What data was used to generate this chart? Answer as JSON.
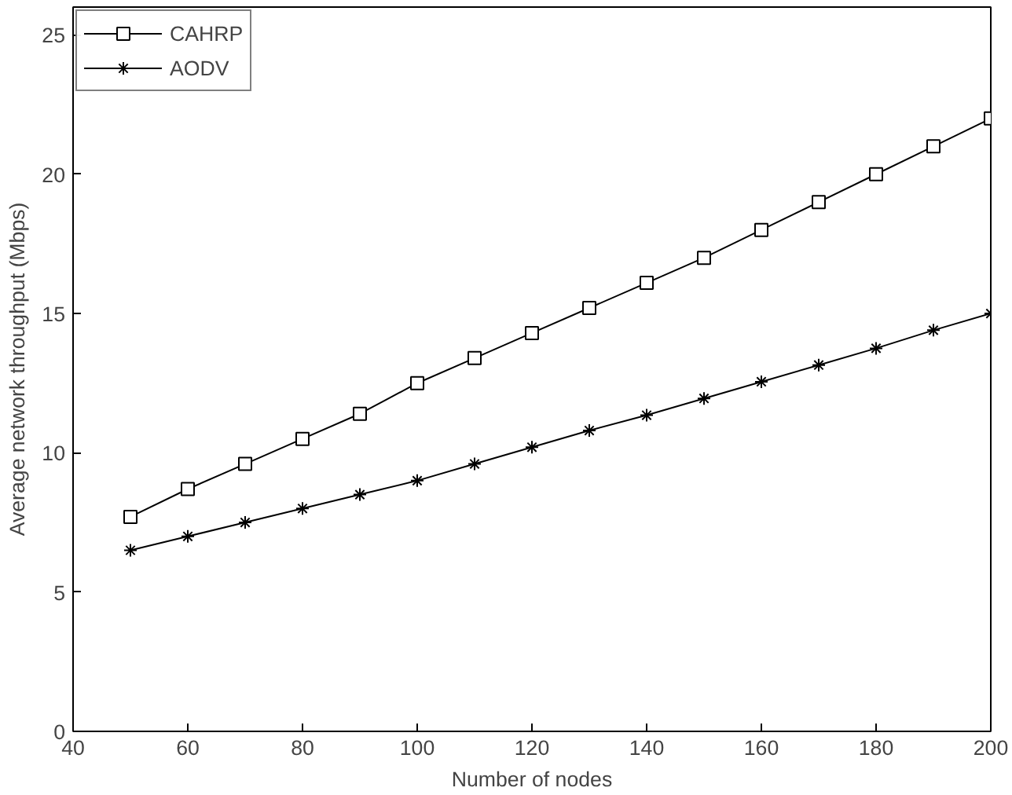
{
  "chart_data": {
    "type": "line",
    "xlabel": "Number of nodes",
    "ylabel": "Average network throughput (Mbps)",
    "x": [
      50,
      60,
      70,
      80,
      90,
      100,
      110,
      120,
      130,
      140,
      150,
      160,
      170,
      180,
      190,
      200
    ],
    "series": [
      {
        "name": "CAHRP",
        "color": "#000000",
        "marker": "square",
        "values": [
          7.7,
          8.7,
          9.6,
          10.5,
          11.4,
          12.5,
          13.4,
          14.3,
          15.2,
          16.1,
          17.0,
          18.0,
          19.0,
          20.0,
          21.0,
          22.0
        ]
      },
      {
        "name": "AODV",
        "color": "#000000",
        "marker": "cross",
        "values": [
          6.5,
          7.0,
          7.5,
          8.0,
          8.5,
          9.0,
          9.6,
          10.2,
          10.8,
          11.35,
          11.95,
          12.55,
          13.15,
          13.75,
          14.4,
          15.0
        ]
      }
    ],
    "xlim": [
      40,
      200
    ],
    "xticks": [
      40,
      60,
      80,
      100,
      120,
      140,
      160,
      180,
      200
    ],
    "ylim": [
      0,
      26
    ],
    "yticks": [
      0,
      5,
      10,
      15,
      20,
      25
    ],
    "grid": false,
    "legend": "top left",
    "line_style": "solid"
  }
}
